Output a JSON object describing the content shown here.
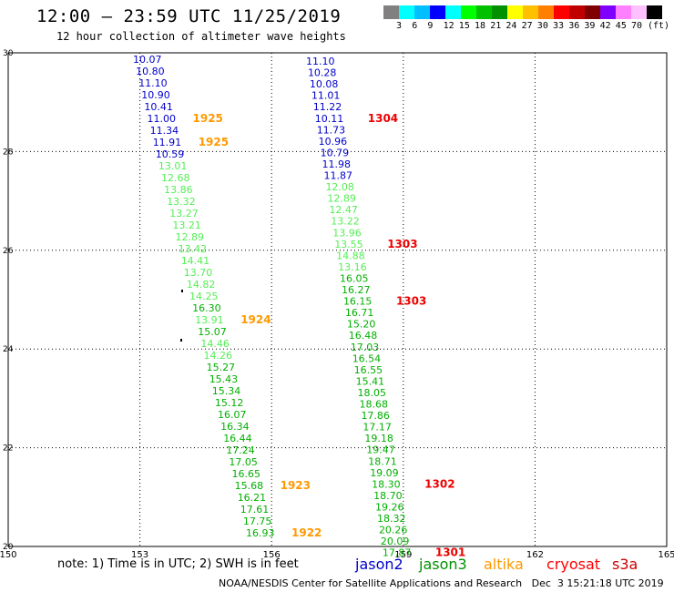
{
  "header": {
    "title": "12:00 – 23:59 UTC 11/25/2019",
    "subtitle": "12 hour collection of altimeter wave heights"
  },
  "legend": {
    "unit": "(ft)",
    "colors": [
      "#808080",
      "#00ffff",
      "#00bfff",
      "#0000ff",
      "#00ffff",
      "#00ff00",
      "#00c000",
      "#009000",
      "#ffff00",
      "#ffc000",
      "#ff8000",
      "#ff0000",
      "#c00000",
      "#800000",
      "#8000ff",
      "#ff80ff",
      "#ffc0ff",
      "#000000"
    ],
    "labels": [
      "3",
      "6",
      "9",
      "12",
      "15",
      "18",
      "21",
      "24",
      "27",
      "30",
      "33",
      "36",
      "39",
      "42",
      "45",
      "70"
    ]
  },
  "axes": {
    "x_ticks": [
      "150",
      "153",
      "156",
      "159",
      "162",
      "165"
    ],
    "y_ticks": [
      "20",
      "22",
      "24",
      "26",
      "28",
      "30"
    ]
  },
  "track_left": {
    "values": [
      "10.07",
      "10.80",
      "11.10",
      "10.90",
      "10.41",
      "11.00",
      "11.34",
      "11.91",
      "10.59",
      "13.01",
      "12.68",
      "13.86",
      "13.32",
      "13.27",
      "13.21",
      "12.89",
      "13.42",
      "14.41",
      "13.70",
      "14.82",
      "14.25",
      "16.30",
      "13.91",
      "15.07",
      "14.46",
      "14.26",
      "15.27",
      "15.43",
      "15.34",
      "15.12",
      "16.07",
      "16.34",
      "16.44",
      "17.24",
      "17.05",
      "16.65",
      "15.68",
      "16.21",
      "17.61",
      "17.75",
      "16.93"
    ],
    "times": [
      {
        "label": "1925",
        "row": 5
      },
      {
        "label": "1925",
        "row": 7
      },
      {
        "label": "1924",
        "row": 22
      },
      {
        "label": "1923",
        "row": 36
      },
      {
        "label": "1922",
        "row": 40
      }
    ]
  },
  "track_right": {
    "values": [
      "11.10",
      "10.28",
      "10.08",
      "11.01",
      "11.22",
      "10.11",
      "11.73",
      "10.96",
      "10.79",
      "11.98",
      "11.87",
      "12.08",
      "12.89",
      "12.47",
      "13.22",
      "13.96",
      "13.55",
      "14.88",
      "13.16",
      "16.05",
      "16.27",
      "16.15",
      "16.71",
      "15.20",
      "16.48",
      "17.03",
      "16.54",
      "16.55",
      "15.41",
      "18.05",
      "18.68",
      "17.86",
      "17.17",
      "19.18",
      "19.47",
      "18.71",
      "19.09",
      "18.30",
      "18.70",
      "19.26",
      "18.32",
      "20.26",
      "20.09",
      "17.87"
    ],
    "times": [
      {
        "label": "1304",
        "row": 5
      },
      {
        "label": "1303",
        "row": 16
      },
      {
        "label": "1303",
        "row": 21
      },
      {
        "label": "1302",
        "row": 37
      },
      {
        "label": "1301",
        "row": 43
      }
    ]
  },
  "footer": {
    "note": "note: 1) Time is in UTC; 2) SWH is in feet",
    "credit": "NOAA/NESDIS Center for Satellite Applications and Research   Dec  3 15:21:18 UTC 2019",
    "satellites": [
      {
        "name": "jason2",
        "color": "#0000cc"
      },
      {
        "name": "jason3",
        "color": "#009000"
      },
      {
        "name": "altika",
        "color": "#ff9900"
      },
      {
        "name": "cryosat",
        "color": "#ff0000"
      },
      {
        "name": "s3a",
        "color": "#cc0000"
      }
    ]
  }
}
